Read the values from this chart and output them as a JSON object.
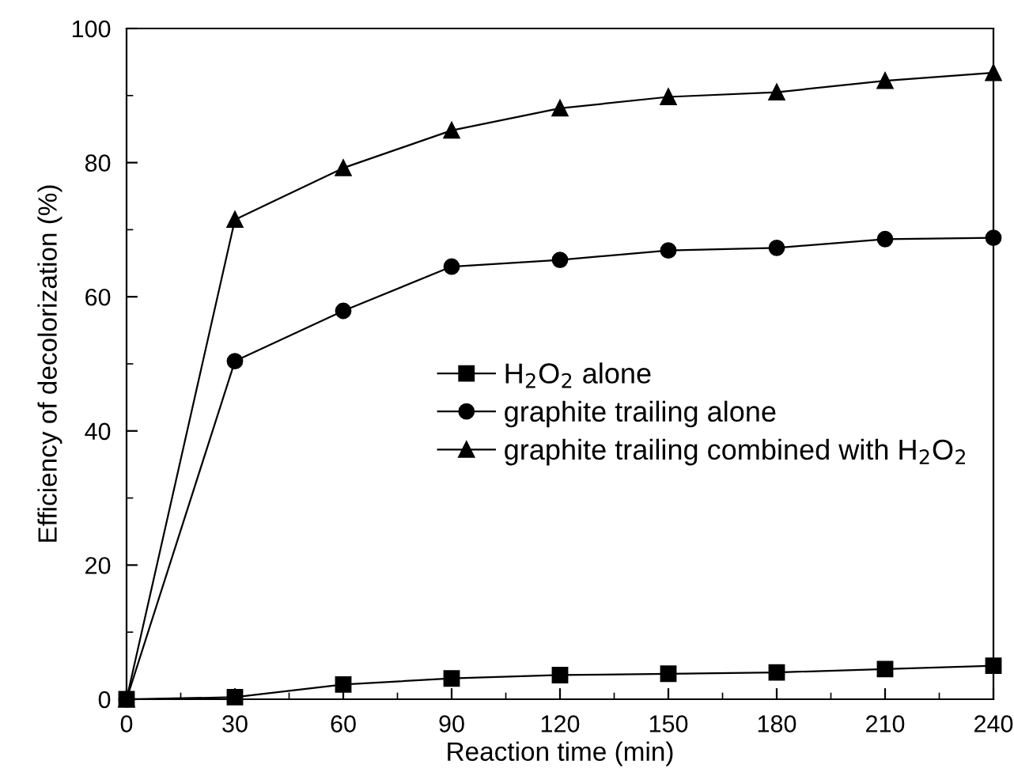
{
  "chart_data": {
    "type": "line",
    "xlabel": "Reaction time (min)",
    "ylabel": "Efficiency of decolorization (%)",
    "x": [
      0,
      30,
      60,
      90,
      120,
      150,
      180,
      210,
      240
    ],
    "series": [
      {
        "name": "H$_{2}$O$_{2}$ alone",
        "color": "#000000",
        "marker": "square",
        "values": [
          0,
          0.3,
          2.2,
          3.1,
          3.6,
          3.8,
          4.0,
          4.5,
          5.0
        ]
      },
      {
        "name": "graphite trailing alone",
        "color": "#000000",
        "marker": "circle",
        "values": [
          0,
          50.4,
          57.9,
          64.5,
          65.5,
          66.9,
          67.3,
          68.6,
          68.8
        ]
      },
      {
        "name": "graphite trailing combined with H$_{2}$O$_{2}$",
        "color": "#000000",
        "marker": "triangle",
        "values": [
          0,
          71.5,
          79.2,
          84.8,
          88.1,
          89.8,
          90.5,
          92.2,
          93.4
        ]
      }
    ],
    "xlim": [
      0,
      240
    ],
    "xticks": [
      0,
      30,
      60,
      90,
      120,
      150,
      180,
      210,
      240
    ],
    "ylim": [
      0,
      100
    ],
    "yticks": [
      0,
      20,
      40,
      60,
      80,
      100
    ],
    "grid": false,
    "legend": "center right",
    "line_style": "solid"
  }
}
